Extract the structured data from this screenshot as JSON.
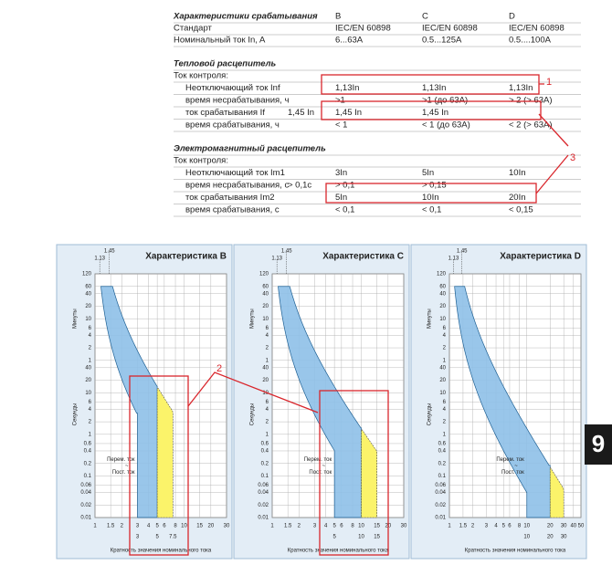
{
  "table": {
    "header": [
      "Характеристики срабатывания",
      "B",
      "C",
      "D"
    ],
    "rows": [
      {
        "label": "Стандарт",
        "values": [
          "IEC/EN 60898",
          "IEC/EN 60898",
          "IEC/EN 60898"
        ]
      },
      {
        "label": "Номинальный ток In, A",
        "values": [
          "6...63A",
          "0.5...125A",
          "0.5....100A"
        ]
      }
    ],
    "blocks": [
      {
        "title": "Тепловой расцепитель",
        "subtitle": "Ток контроля:",
        "rows": [
          {
            "label": "Неотключающий ток  Inf",
            "values": [
              "1,13In",
              "1,13In",
              "1,13In"
            ]
          },
          {
            "label": "время несрабатывания, ч",
            "values": [
              ">1",
              ">1 (до 63A)",
              "> 2 (> 63A)"
            ]
          },
          {
            "label": "ток срабатывания If",
            "extra": "1,45 In",
            "values": [
              "1,45 In",
              "1,45 In"
            ]
          },
          {
            "label": "время срабатывания, ч",
            "values": [
              "< 1",
              "< 1 (до 63A)",
              "< 2 (> 63A)"
            ]
          }
        ]
      },
      {
        "title": "Электромагнитный расцепитель",
        "subtitle": "Ток контроля:",
        "rows": [
          {
            "label": "Неотключающий ток Im1",
            "values": [
              "3In",
              "5In",
              "10In"
            ]
          },
          {
            "label": "время несрабатывания, с",
            "extra": "> 0,1с",
            "values": [
              "> 0,1",
              "> 0,15"
            ]
          },
          {
            "label": "ток срабатывания Im2",
            "values": [
              "5In",
              "10In",
              "20In"
            ]
          },
          {
            "label": "время срабатывания, с",
            "values": [
              "< 0,1",
              "< 0,1",
              "< 0,15"
            ]
          }
        ]
      }
    ]
  },
  "annotations": [
    "1",
    "2",
    "3"
  ],
  "tab": "9",
  "charts_common": {
    "y_label_minutes": "Минуты",
    "y_label_seconds": "Секунды",
    "x_label": "Кратность значения номинального тока",
    "minute_ticks": [
      120,
      60,
      40,
      20,
      10,
      6,
      4,
      2,
      1
    ],
    "second_ticks": [
      40,
      20,
      10,
      6,
      4,
      2,
      1,
      0.6,
      0.4,
      0.2,
      0.1,
      0.06,
      0.04,
      0.02,
      0.01
    ],
    "top_marks": [
      1.45,
      1.13
    ],
    "legend": [
      "Перем. ток",
      "~",
      "Пост. ток"
    ]
  },
  "charts": [
    {
      "title": "Характеристика B",
      "x_ticks": [
        1,
        1.5,
        2,
        3,
        4,
        5,
        6,
        8,
        10,
        15,
        20,
        30
      ],
      "range_marks": [
        3,
        5,
        7.5
      ]
    },
    {
      "title": "Характеристика C",
      "x_ticks": [
        1,
        1.5,
        2,
        3,
        4,
        5,
        6,
        8,
        10,
        15,
        20,
        30
      ],
      "range_marks": [
        5,
        10,
        15
      ]
    },
    {
      "title": "Характеристика D",
      "x_ticks": [
        1,
        1.5,
        2,
        3,
        4,
        5,
        6,
        8,
        10,
        20,
        30,
        40,
        50
      ],
      "range_marks": [
        10,
        20,
        30
      ]
    }
  ]
}
